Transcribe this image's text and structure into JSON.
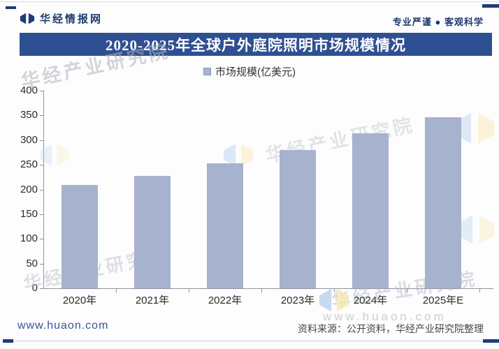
{
  "header": {
    "brand": "华经情报网",
    "tagline": "专业严谨 ● 客观科学"
  },
  "title": "2020-2025年全球户外庭院照明市场规模情况",
  "legend": {
    "label": "市场规模(亿美元)",
    "marker_color": "#a6b2ce"
  },
  "chart_data": {
    "type": "bar",
    "title": "2020-2025年全球户外庭院照明市场规模情况",
    "categories": [
      "2020年",
      "2021年",
      "2022年",
      "2023年",
      "2024年",
      "2025年E"
    ],
    "series": [
      {
        "name": "市场规模(亿美元)",
        "values": [
          209,
          228,
          253,
          280,
          314,
          347
        ]
      }
    ],
    "xlabel": "",
    "ylabel": "",
    "ylim": [
      0,
      400
    ],
    "yticks": [
      0,
      50,
      100,
      150,
      200,
      250,
      300,
      350,
      400
    ],
    "grid": false,
    "legend_position": "top",
    "bar_color": "#a6b2ce"
  },
  "watermarks": {
    "brand_text": "华经产业研究院",
    "site_text": "www.huaon.com"
  },
  "footer": {
    "site": "www.huaon.com",
    "source": "资料来源：公开资料，华经产业研究院整理"
  },
  "colors": {
    "title_bar": "#2e4f92",
    "bar": "#a6b2ce",
    "navy": "#1e3c78",
    "axis": "#8f959d"
  }
}
